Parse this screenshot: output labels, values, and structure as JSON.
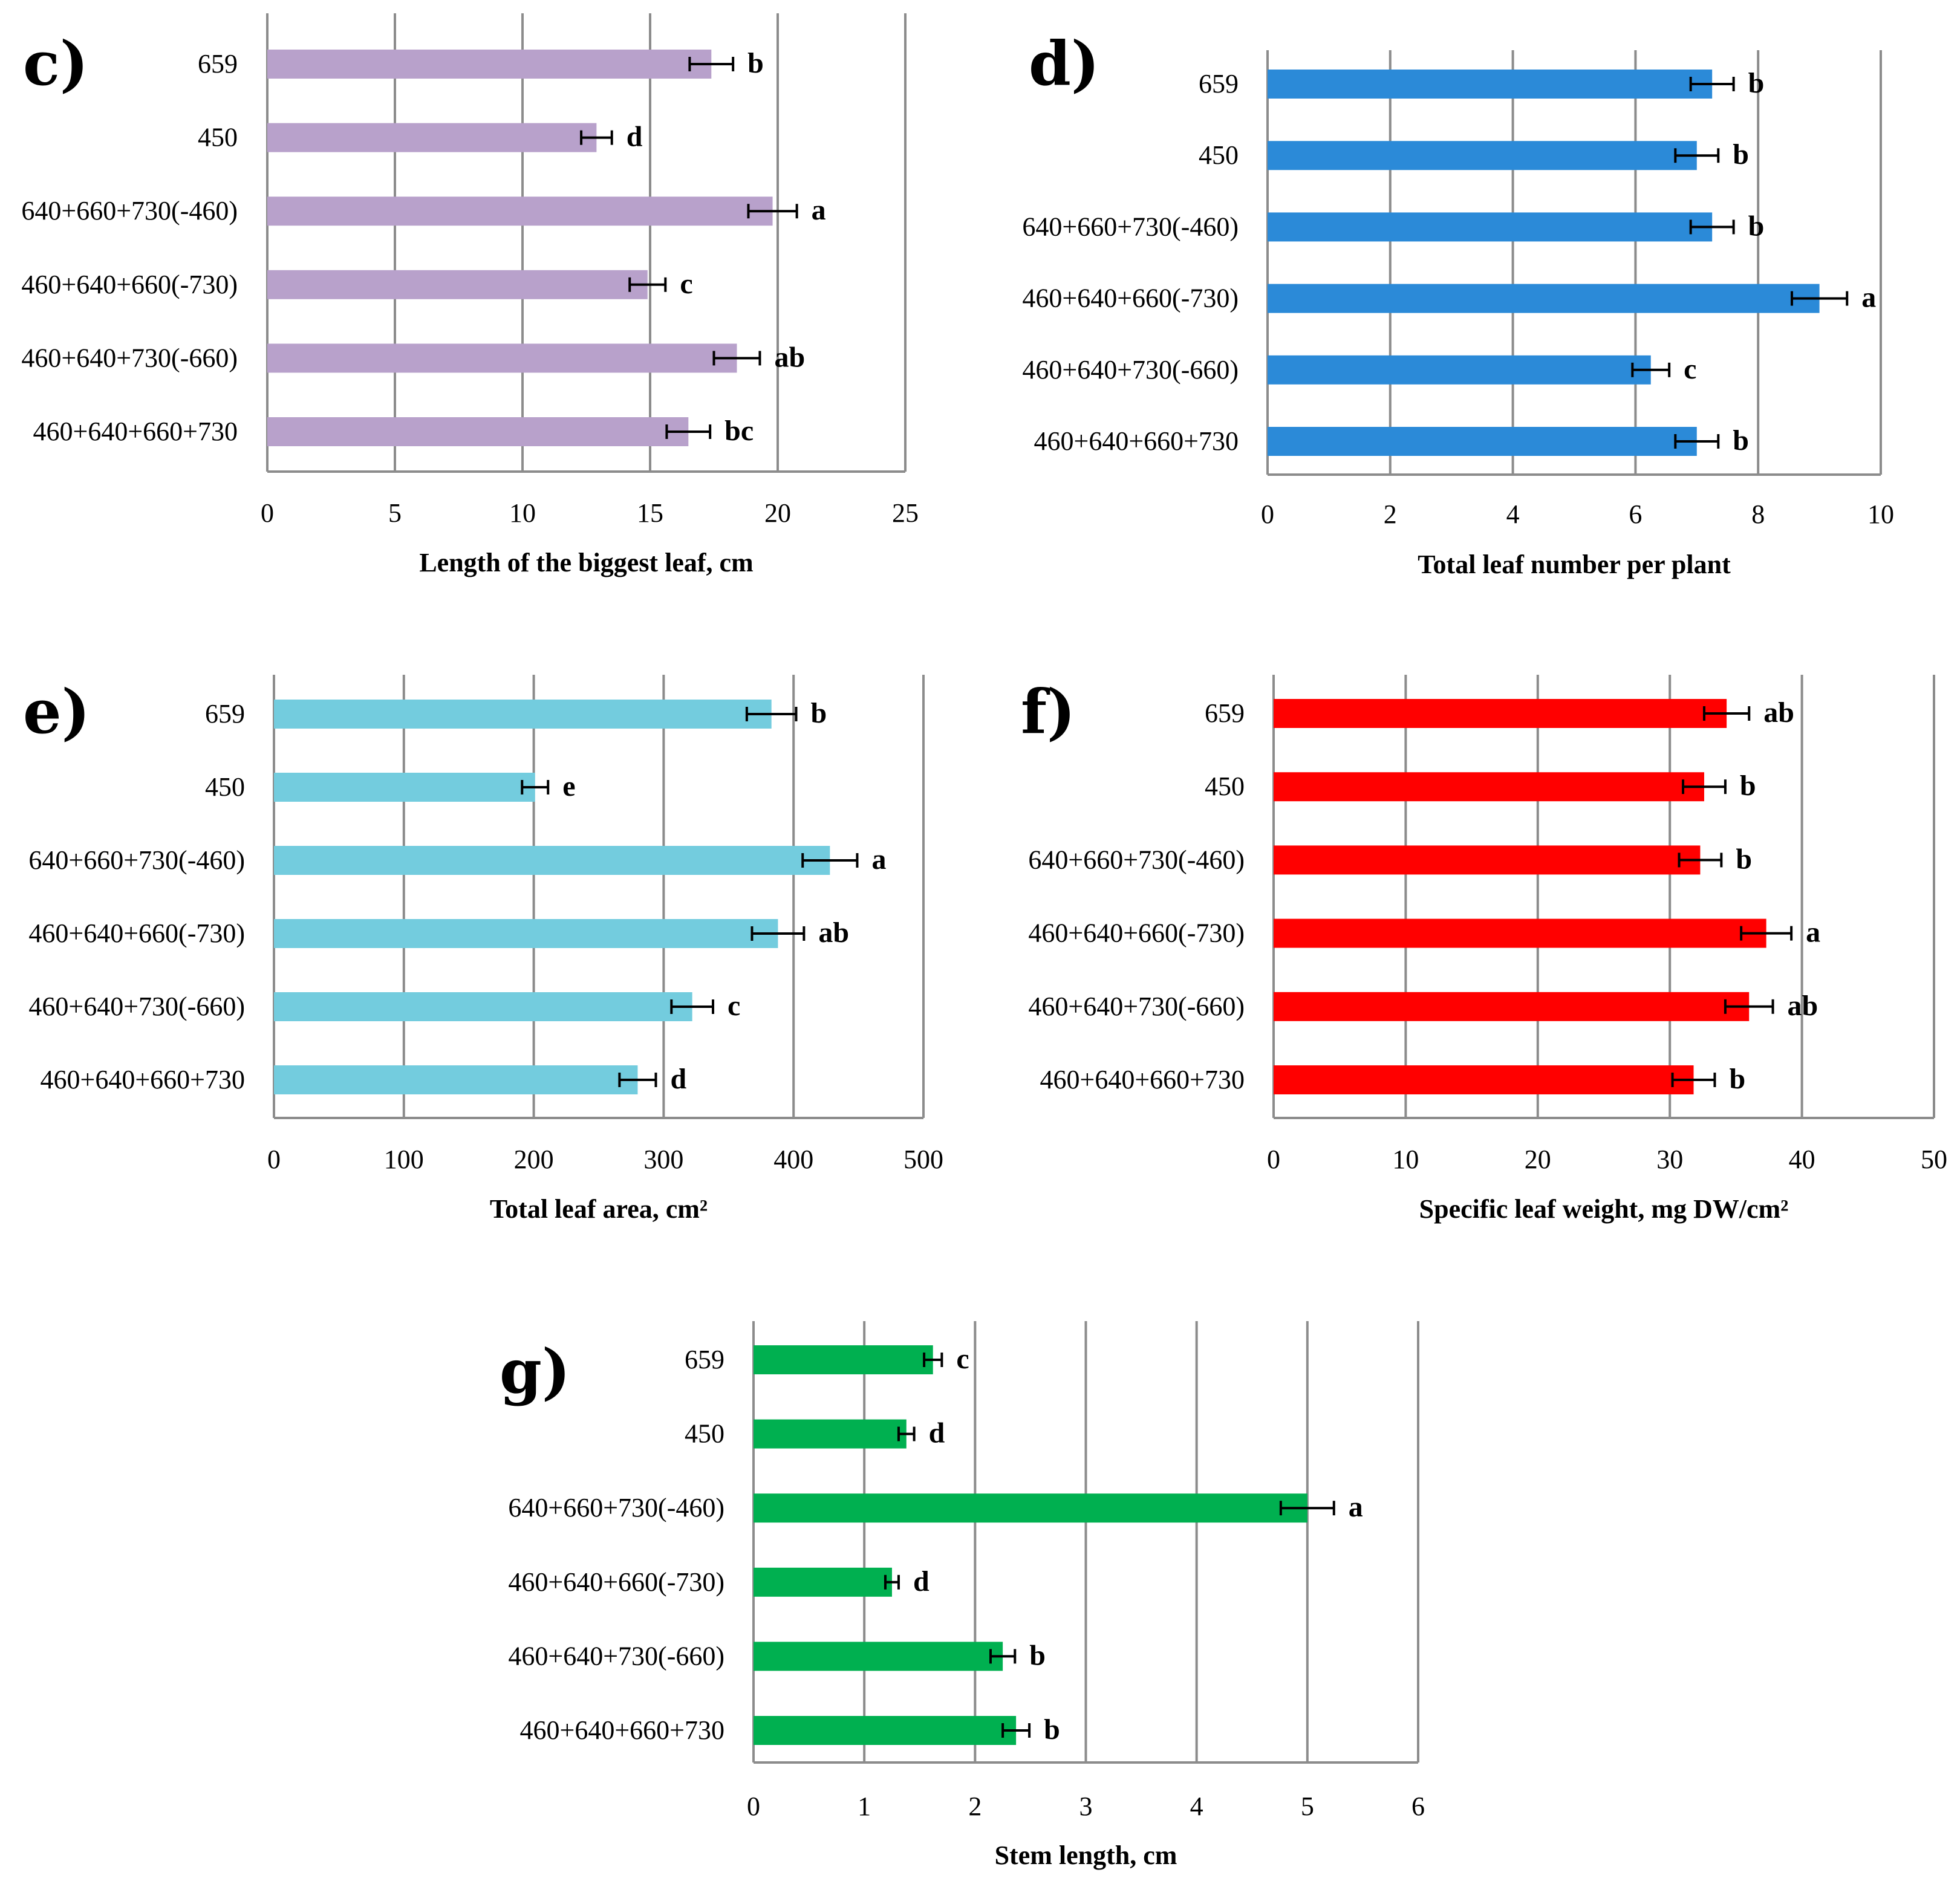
{
  "chart_data": [
    {
      "type": "bar",
      "orientation": "horizontal",
      "panel_label": "c)",
      "categories": [
        "659",
        "450",
        "640+660+730(-460)",
        "460+640+660(-730)",
        "460+640+730(-660)",
        "460+640+660+730"
      ],
      "values": [
        17.4,
        12.9,
        19.8,
        14.9,
        18.4,
        16.5
      ],
      "errors": [
        0.85,
        0.6,
        0.95,
        0.7,
        0.9,
        0.85
      ],
      "significance": [
        "b",
        "d",
        "a",
        "c",
        "ab",
        "bc"
      ],
      "xlabel": "Length of the biggest leaf, cm",
      "xlim": [
        0,
        25
      ],
      "xticks": [
        "0",
        "5",
        "10",
        "15",
        "20",
        "25"
      ],
      "color": "#B8A1CB",
      "grid": true
    },
    {
      "type": "bar",
      "orientation": "horizontal",
      "panel_label": "d)",
      "categories": [
        "659",
        "450",
        "640+660+730(-460)",
        "460+640+660(-730)",
        "460+640+730(-660)",
        "460+640+660+730"
      ],
      "values": [
        7.25,
        7.0,
        7.25,
        9.0,
        6.25,
        7.0
      ],
      "errors": [
        0.35,
        0.35,
        0.35,
        0.45,
        0.3,
        0.35
      ],
      "significance": [
        "b",
        "b",
        "b",
        "a",
        "c",
        "b"
      ],
      "xlabel": "Total leaf number per plant",
      "xlim": [
        0,
        10
      ],
      "xticks": [
        "0",
        "2",
        "4",
        "6",
        "8",
        "10"
      ],
      "color": "#2B8AD8",
      "grid": true
    },
    {
      "type": "bar",
      "orientation": "horizontal",
      "panel_label": "e)",
      "categories": [
        "659",
        "450",
        "640+660+730(-460)",
        "460+640+660(-730)",
        "460+640+730(-660)",
        "460+640+660+730"
      ],
      "values": [
        383,
        201,
        428,
        388,
        322,
        280
      ],
      "errors": [
        19,
        10,
        21,
        20,
        16,
        14
      ],
      "significance": [
        "b",
        "e",
        "a",
        "ab",
        "c",
        "d"
      ],
      "xlabel": "Total leaf area, cm²",
      "xlim": [
        0,
        500
      ],
      "xticks": [
        "0",
        "100",
        "200",
        "300",
        "400",
        "500"
      ],
      "color": "#73CCDE",
      "grid": true
    },
    {
      "type": "bar",
      "orientation": "horizontal",
      "panel_label": "f)",
      "categories": [
        "659",
        "450",
        "640+660+730(-460)",
        "460+640+660(-730)",
        "460+640+730(-660)",
        "460+640+660+730"
      ],
      "values": [
        34.3,
        32.6,
        32.3,
        37.3,
        36.0,
        31.8
      ],
      "errors": [
        1.7,
        1.6,
        1.6,
        1.9,
        1.8,
        1.6
      ],
      "significance": [
        "ab",
        "b",
        "b",
        "a",
        "ab",
        "b"
      ],
      "xlabel": "Specific leaf weight, mg DW/cm²",
      "xlim": [
        0,
        50
      ],
      "xticks": [
        "0",
        "10",
        "20",
        "30",
        "40",
        "50"
      ],
      "color": "#FF0000",
      "grid": true
    },
    {
      "type": "bar",
      "orientation": "horizontal",
      "panel_label": "g)",
      "categories": [
        "659",
        "450",
        "640+660+730(-460)",
        "460+640+660(-730)",
        "460+640+730(-660)",
        "460+640+660+730"
      ],
      "values": [
        1.62,
        1.38,
        5.0,
        1.25,
        2.25,
        2.37
      ],
      "errors": [
        0.08,
        0.07,
        0.24,
        0.06,
        0.11,
        0.12
      ],
      "significance": [
        "c",
        "d",
        "a",
        "d",
        "b",
        "b"
      ],
      "xlabel": "Stem length, cm",
      "xlim": [
        0,
        6
      ],
      "xticks": [
        "0",
        "1",
        "2",
        "3",
        "4",
        "5",
        "6"
      ],
      "color": "#00B050",
      "grid": true
    }
  ]
}
